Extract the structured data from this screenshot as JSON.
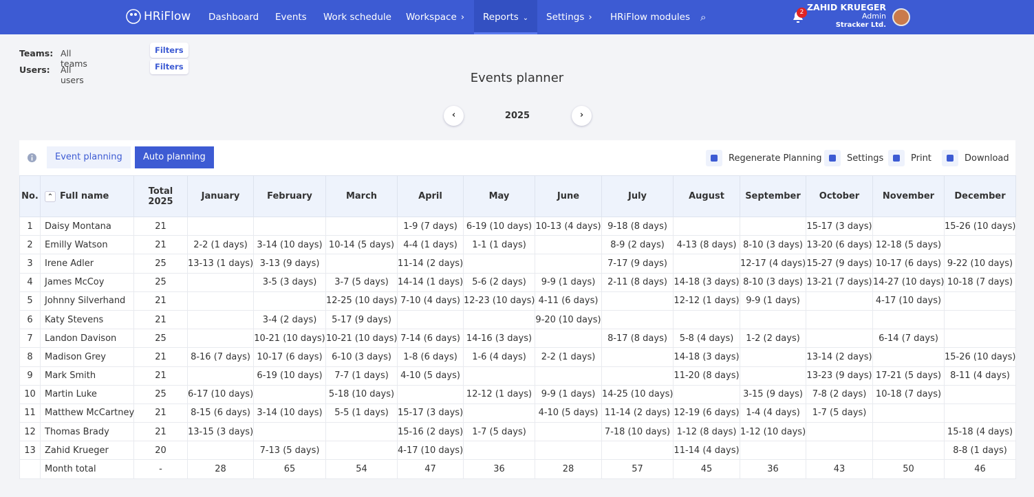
{
  "nav": {
    "logo": "HRiFlow",
    "items": [
      "Dashboard",
      "Events",
      "Work schedule",
      "Workspace",
      "Reports",
      "Settings",
      "HRiFlow modules"
    ],
    "notifications": "2",
    "user": {
      "name": "ZAHID KRUEGER",
      "role": "Admin",
      "company": "Stracker Ltd."
    }
  },
  "filters": [
    {
      "label": "Teams:",
      "value": "All teams",
      "button": "Filters"
    },
    {
      "label": "Users:",
      "value": "All users",
      "button": "Filters"
    }
  ],
  "title": "Events planner",
  "year": "2025",
  "tabs": [
    "Event planning",
    "Auto planning"
  ],
  "actions": [
    "Regenerate Planning",
    "Settings",
    "Print",
    "Download"
  ],
  "table": {
    "headers": [
      "No.",
      "Full name",
      "Total 2025",
      "January",
      "February",
      "March",
      "April",
      "May",
      "June",
      "July",
      "August",
      "September",
      "October",
      "November",
      "December"
    ],
    "rows": [
      [
        1,
        "Daisy Montana",
        21,
        null,
        null,
        null,
        "1-9 (7 days)",
        "6-19 (10 days)",
        "10-13 (4 days)",
        "9-18 (8 days)",
        null,
        null,
        "15-17 (3 days)",
        null,
        "15-26 (10 days)"
      ],
      [
        2,
        "Emilly Watson",
        21,
        "2-2 (1 days)",
        "3-14 (10 days)",
        "10-14 (5 days)",
        "4-4 (1 days)",
        "1-1 (1 days)",
        null,
        "8-9 (2 days)",
        "4-13 (8 days)",
        "8-10 (3 days)",
        "13-20 (6 days)",
        "12-18 (5 days)",
        null
      ],
      [
        3,
        "Irene Adler",
        25,
        "13-13 (1 days)",
        "3-13 (9 days)",
        null,
        "11-14 (2 days)",
        null,
        null,
        "7-17 (9 days)",
        null,
        "12-17 (4 days)",
        "15-27 (9 days)",
        "10-17 (6 days)",
        "9-22 (10 days)"
      ],
      [
        4,
        "James McCoy",
        25,
        null,
        "3-5 (3 days)",
        "3-7 (5 days)",
        "14-14 (1 days)",
        "5-6 (2 days)",
        "9-9 (1 days)",
        "2-11 (8 days)",
        "14-18 (3 days)",
        "8-10 (3 days)",
        "13-21 (7 days)",
        "14-27 (10 days)",
        "10-18 (7 days)"
      ],
      [
        5,
        "Johnny Silverhand",
        21,
        null,
        null,
        "12-25 (10 days)",
        "7-10 (4 days)",
        "12-23 (10 days)",
        "4-11 (6 days)",
        null,
        "12-12 (1 days)",
        "9-9 (1 days)",
        null,
        "4-17 (10 days)",
        null
      ],
      [
        6,
        "Katy Stevens",
        21,
        null,
        "3-4 (2 days)",
        "5-17 (9 days)",
        null,
        null,
        "9-20 (10 days)",
        null,
        null,
        null,
        null,
        null,
        null
      ],
      [
        7,
        "Landon Davison",
        25,
        null,
        "10-21 (10 days)",
        "10-21 (10 days)",
        "7-14 (6 days)",
        "14-16 (3 days)",
        null,
        "8-17 (8 days)",
        "5-8 (4 days)",
        "1-2 (2 days)",
        null,
        "6-14 (7 days)",
        null
      ],
      [
        8,
        "Madison Grey",
        21,
        "8-16 (7 days)",
        "10-17 (6 days)",
        "6-10 (3 days)",
        "1-8 (6 days)",
        "1-6 (4 days)",
        "2-2 (1 days)",
        null,
        "14-18 (3 days)",
        null,
        "13-14 (2 days)",
        null,
        "15-26 (10 days)"
      ],
      [
        9,
        "Mark Smith",
        21,
        null,
        "6-19 (10 days)",
        "7-7 (1 days)",
        "4-10 (5 days)",
        null,
        null,
        null,
        "11-20 (8 days)",
        null,
        "13-23 (9 days)",
        "17-21 (5 days)",
        "8-11 (4 days)"
      ],
      [
        10,
        "Martin Luke",
        25,
        "6-17 (10 days)",
        null,
        "5-18 (10 days)",
        null,
        "12-12 (1 days)",
        "9-9 (1 days)",
        "14-25 (10 days)",
        null,
        "3-15 (9 days)",
        "7-8 (2 days)",
        "10-18 (7 days)",
        null
      ],
      [
        11,
        "Matthew McCartney",
        21,
        "8-15 (6 days)",
        "3-14 (10 days)",
        "5-5 (1 days)",
        "15-17 (3 days)",
        null,
        "4-10 (5 days)",
        "11-14 (2 days)",
        "12-19 (6 days)",
        "1-4 (4 days)",
        "1-7 (5 days)",
        null,
        null
      ],
      [
        12,
        "Thomas Brady",
        21,
        "13-15 (3 days)",
        null,
        null,
        "15-16 (2 days)",
        "1-7 (5 days)",
        null,
        "7-18 (10 days)",
        "1-12 (8 days)",
        "1-12 (10 days)",
        null,
        null,
        "15-18 (4 days)"
      ],
      [
        13,
        "Zahid Krueger",
        20,
        null,
        "7-13 (5 days)",
        null,
        "4-17 (10 days)",
        null,
        null,
        null,
        "11-14 (4 days)",
        null,
        null,
        null,
        "8-8 (1 days)"
      ]
    ],
    "footer": [
      null,
      "Month total",
      "-",
      28,
      65,
      54,
      47,
      36,
      28,
      57,
      45,
      36,
      43,
      50,
      46
    ]
  }
}
